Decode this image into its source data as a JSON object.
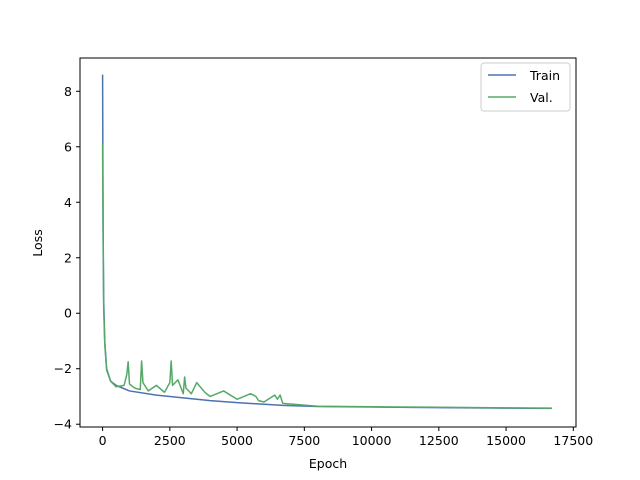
{
  "chart_data": {
    "type": "line",
    "title": "",
    "xlabel": "Epoch",
    "ylabel": "Loss",
    "xlim": [
      -840,
      17600
    ],
    "ylim": [
      -4.1,
      9.2
    ],
    "xticks": [
      0,
      2500,
      5000,
      7500,
      10000,
      12500,
      15000,
      17500
    ],
    "xtick_labels": [
      "0",
      "2500",
      "5000",
      "7500",
      "10000",
      "12500",
      "15000",
      "17500"
    ],
    "yticks": [
      -4,
      -2,
      0,
      2,
      4,
      6,
      8
    ],
    "ytick_labels": [
      "−4",
      "−2",
      "0",
      "2",
      "4",
      "6",
      "8"
    ],
    "grid": false,
    "legend_position": "top-right",
    "colors": {
      "Train": "#4c72b0",
      "Val.": "#55a868"
    },
    "series": [
      {
        "name": "Train",
        "x": [
          0,
          20,
          40,
          80,
          150,
          300,
          500,
          1000,
          2000,
          3000,
          4000,
          5000,
          6000,
          6700,
          8000,
          10000,
          12500,
          15000,
          16700
        ],
        "values": [
          8.6,
          3.0,
          0.5,
          -1.0,
          -2.0,
          -2.45,
          -2.6,
          -2.8,
          -2.95,
          -3.05,
          -3.15,
          -3.22,
          -3.28,
          -3.32,
          -3.36,
          -3.38,
          -3.4,
          -3.42,
          -3.43
        ]
      },
      {
        "name": "Val.",
        "x": [
          0,
          20,
          40,
          80,
          150,
          300,
          500,
          800,
          900,
          950,
          1000,
          1200,
          1400,
          1450,
          1500,
          1700,
          2000,
          2300,
          2500,
          2550,
          2600,
          2800,
          3000,
          3050,
          3100,
          3300,
          3500,
          3800,
          4000,
          4500,
          5000,
          5500,
          5700,
          5800,
          6000,
          6400,
          6500,
          6600,
          6700,
          8000,
          10000,
          12500,
          15000,
          16700
        ],
        "values": [
          6.1,
          2.5,
          0.2,
          -1.1,
          -2.05,
          -2.45,
          -2.65,
          -2.6,
          -2.2,
          -1.75,
          -2.55,
          -2.7,
          -2.75,
          -1.72,
          -2.5,
          -2.8,
          -2.6,
          -2.85,
          -2.5,
          -1.72,
          -2.6,
          -2.4,
          -2.9,
          -2.3,
          -2.7,
          -2.9,
          -2.5,
          -2.85,
          -3.0,
          -2.8,
          -3.1,
          -2.9,
          -3.0,
          -3.15,
          -3.2,
          -2.95,
          -3.1,
          -2.95,
          -3.25,
          -3.35,
          -3.37,
          -3.39,
          -3.41,
          -3.42
        ]
      }
    ]
  }
}
